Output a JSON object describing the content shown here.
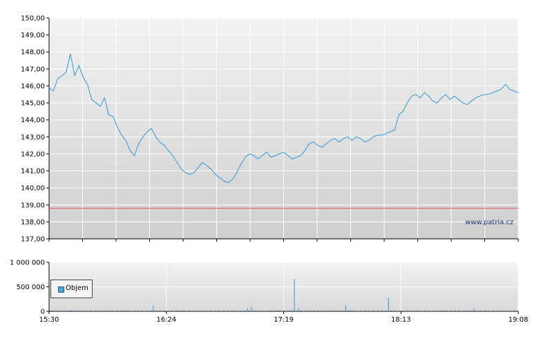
{
  "watermark": "www.patria.cz",
  "chart_data": [
    {
      "type": "line",
      "title": "",
      "ylim": [
        137,
        150
      ],
      "y_ticks": [
        "137,00",
        "138,00",
        "139,00",
        "140,00",
        "141,00",
        "142,00",
        "143,00",
        "144,00",
        "145,00",
        "146,00",
        "147,00",
        "148,00",
        "149,00",
        "150,00"
      ],
      "reference_line": 138.8,
      "colors": {
        "line": "#4aa3d4",
        "reference": "#e05050"
      },
      "series": [
        {
          "values": [
            145.9,
            145.7,
            146.4,
            146.6,
            146.8,
            147.9,
            146.6,
            147.2,
            146.5,
            146.1,
            145.2,
            145.0,
            144.8,
            145.3,
            144.3,
            144.2,
            143.6,
            143.1,
            142.8,
            142.2,
            141.9,
            142.6,
            143.0,
            143.3,
            143.5,
            143.0,
            142.7,
            142.5,
            142.2,
            141.9,
            141.5,
            141.1,
            140.9,
            140.8,
            140.9,
            141.2,
            141.5,
            141.3,
            141.1,
            140.8,
            140.6,
            140.4,
            140.3,
            140.5,
            140.9,
            141.4,
            141.8,
            142.0,
            141.9,
            141.7,
            141.9,
            142.1,
            141.8,
            141.9,
            142.0,
            142.1,
            141.9,
            141.7,
            141.8,
            141.9,
            142.2,
            142.6,
            142.7,
            142.5,
            142.4,
            142.6,
            142.8,
            142.9,
            142.7,
            142.9,
            143.0,
            142.8,
            143.0,
            142.9,
            142.7,
            142.8,
            143.0,
            143.1,
            143.1,
            143.2,
            143.3,
            143.4,
            144.3,
            144.5,
            145.0,
            145.4,
            145.5,
            145.3,
            145.6,
            145.4,
            145.1,
            145.0,
            145.3,
            145.5,
            145.2,
            145.4,
            145.2,
            145.0,
            144.9,
            145.1,
            145.3,
            145.4,
            145.5,
            145.5,
            145.6,
            145.7,
            145.8,
            146.1,
            145.8,
            145.7,
            145.6
          ]
        }
      ],
      "x_ticks": [
        "15:30",
        "16:24",
        "17:19",
        "18:13",
        "19:08"
      ]
    },
    {
      "type": "bar",
      "ylim": [
        0,
        1000000
      ],
      "y_ticks": [
        "0",
        "500 000",
        "1 000 000"
      ],
      "legend": {
        "label": "Objem"
      },
      "colors": {
        "bar": "#4aa3d4"
      },
      "series": [
        {
          "name": "Objem",
          "values": [
            20000,
            8000,
            12000,
            5000,
            9000,
            30000,
            7000,
            6000,
            11000,
            15000,
            8000,
            5000,
            10000,
            12000,
            9000,
            6000,
            7000,
            8000,
            25000,
            10000,
            7000,
            9000,
            6000,
            8000,
            110000,
            9000,
            7000,
            15000,
            8000,
            6000,
            9000,
            20000,
            12000,
            8000,
            10000,
            7000,
            9000,
            11000,
            6000,
            8000,
            12000,
            9000,
            7000,
            15000,
            10000,
            8000,
            60000,
            90000,
            20000,
            10000,
            8000,
            9000,
            7000,
            12000,
            15000,
            20000,
            25000,
            660000,
            60000,
            10000,
            8000,
            9000,
            7000,
            11000,
            15000,
            20000,
            8000,
            12000,
            10000,
            120000,
            30000,
            15000,
            9000,
            8000,
            10000,
            12000,
            9000,
            7000,
            10000,
            280000,
            15000,
            9000,
            8000,
            10000,
            12000,
            9000,
            11000,
            7000,
            8000,
            9000,
            6000,
            10000,
            9000,
            8000,
            12000,
            7000,
            9000,
            10000,
            8000,
            60000,
            12000,
            9000,
            15000,
            8000,
            10000,
            7000,
            9000,
            11000,
            12000,
            8000
          ]
        }
      ]
    }
  ]
}
